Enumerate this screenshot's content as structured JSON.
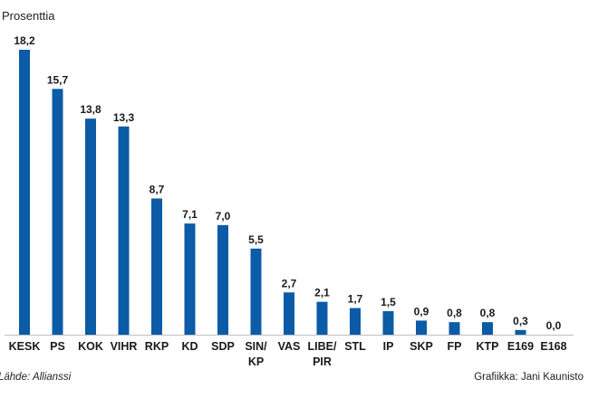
{
  "chart_data": {
    "type": "bar",
    "title": "",
    "ylabel": "Prosenttia",
    "xlabel": "",
    "ylim": [
      0,
      18.2
    ],
    "grid": false,
    "categories": [
      "KESK",
      "PS",
      "KOK",
      "VIHR",
      "RKP",
      "KD",
      "SDP",
      [
        "SIN/",
        "KP"
      ],
      "VAS",
      [
        "LIBE/",
        "PIR"
      ],
      "STL",
      "IP",
      "SKP",
      "FP",
      "KTP",
      "E169",
      "E168"
    ],
    "values": [
      18.2,
      15.7,
      13.8,
      13.3,
      8.7,
      7.1,
      7.0,
      5.5,
      2.7,
      2.1,
      1.7,
      1.5,
      0.9,
      0.8,
      0.8,
      0.3,
      0.0
    ],
    "value_labels": [
      "18,2",
      "15,7",
      "13,8",
      "13,3",
      "8,7",
      "7,1",
      "7,0",
      "5,5",
      "2,7",
      "2,1",
      "1,7",
      "1,5",
      "0,9",
      "0,8",
      "0,8",
      "0,3",
      "0,0"
    ],
    "bar_color": "#0b5ba6",
    "baseline_color": "#bfbfbf"
  },
  "footer": {
    "source": "Lähde: Allianssi",
    "credit": "Grafiikka: Jani Kaunisto"
  }
}
